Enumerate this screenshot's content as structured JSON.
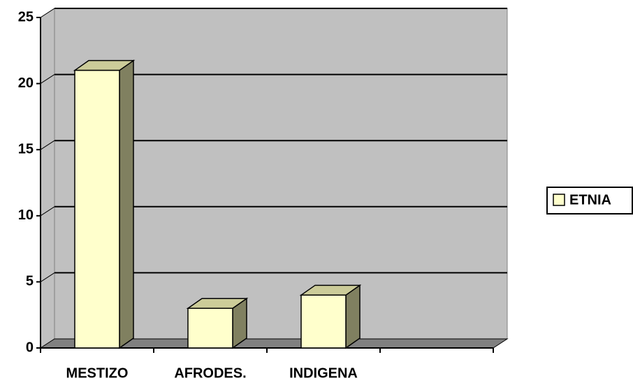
{
  "chart_data": {
    "type": "bar3d",
    "categories": [
      "MESTIZO",
      "AFRODES.",
      "INDIGENA",
      null
    ],
    "series": [
      {
        "name": "ETNIA",
        "color": "#ffffcc",
        "values": [
          21,
          3,
          4,
          null
        ]
      }
    ],
    "ylim": [
      0,
      25
    ],
    "yticks": [
      0,
      5,
      10,
      15,
      20,
      25
    ],
    "grid": true,
    "legend": "right"
  }
}
